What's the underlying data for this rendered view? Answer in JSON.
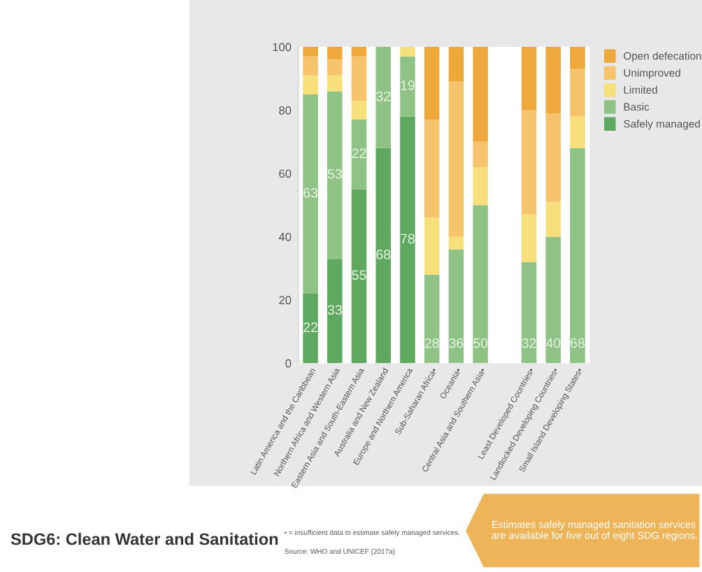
{
  "chart_data": {
    "type": "bar",
    "stacked": true,
    "categories": [
      "Latin America and the Caribbean",
      "Northern Africa and Western Asia",
      "Eastern Asia and South-Eastern Asia",
      "Australia and New Zealand",
      "Europe and Northern America",
      "Sub-Saharan Africa•",
      "Oceania•",
      "Central Asia and Southern Asia•",
      null,
      "Least Developed Countries•",
      "Landlocked Developing Countries•",
      "Small Island Developing States•"
    ],
    "series": [
      {
        "name": "Safely managed",
        "color": "#5fa860",
        "values": [
          22,
          33,
          55,
          68,
          78,
          null,
          null,
          null,
          null,
          null,
          null,
          null
        ],
        "value_labels": [
          "22",
          "33",
          "55",
          "68",
          "78",
          null,
          null,
          null,
          null,
          null,
          null,
          null
        ]
      },
      {
        "name": "Basic",
        "color": "#8fc386",
        "values": [
          63,
          53,
          22,
          32,
          19,
          28,
          36,
          50,
          null,
          32,
          40,
          68
        ],
        "value_labels": [
          "63",
          "53",
          "22",
          "32",
          "19",
          "28",
          "36",
          "50",
          null,
          "32",
          "40",
          "68"
        ]
      },
      {
        "name": "Limited",
        "color": "#f7e07c",
        "values": [
          6,
          5,
          6,
          null,
          3,
          18,
          4,
          12,
          null,
          15,
          11,
          10
        ]
      },
      {
        "name": "Unimproved",
        "color": "#f6c46c",
        "values": [
          6,
          5,
          14,
          null,
          null,
          31,
          49,
          8,
          null,
          33,
          28,
          15
        ]
      },
      {
        "name": "Open defecation",
        "color": "#eea83c",
        "values": [
          3,
          4,
          3,
          null,
          null,
          23,
          11,
          30,
          null,
          20,
          21,
          7
        ]
      }
    ],
    "ylim": [
      0,
      100
    ],
    "yticks": [
      0,
      20,
      40,
      60,
      80,
      100
    ],
    "grid": false,
    "legend": "top right",
    "annotations": [
      "SDG6: Clean Water and Sanitation",
      "• = insufficient data to estimate safely managed services.",
      "Source: WHO and UNICEF (2017a)",
      "Estimates safely managed sanitation services are available for five out of eight SDG regions."
    ]
  }
}
